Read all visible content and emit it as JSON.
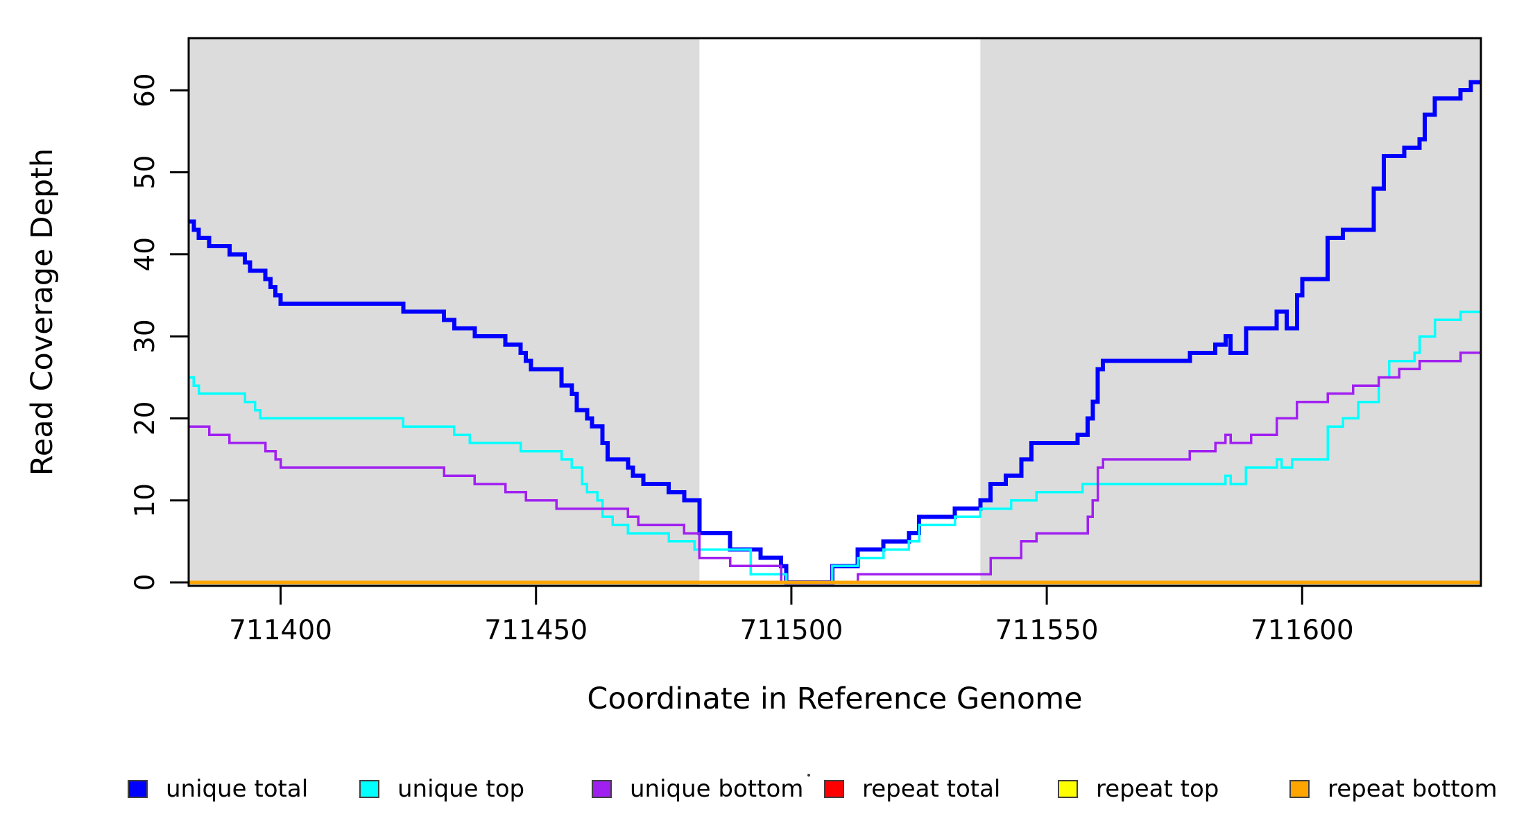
{
  "chart_data": {
    "type": "line",
    "subtype": "step-coverage",
    "title": "",
    "xlabel": "Coordinate in Reference Genome",
    "ylabel": "Read Coverage Depth",
    "xlim": [
      711382,
      711635
    ],
    "ylim": [
      0,
      66
    ],
    "grid": false,
    "legend_position": "bottom",
    "plot_background": "#ffffff",
    "shaded_band_color": "#dcdcdc",
    "shaded_regions": [
      {
        "x0": 711382,
        "x1": 711482
      },
      {
        "x0": 711537,
        "x1": 711635
      }
    ],
    "x_ticks": [
      {
        "value": 711400,
        "label": "711400"
      },
      {
        "value": 711450,
        "label": "711450"
      },
      {
        "value": 711500,
        "label": "711500"
      },
      {
        "value": 711550,
        "label": "711550"
      },
      {
        "value": 711600,
        "label": "711600"
      }
    ],
    "y_ticks": [
      {
        "value": 0,
        "label": "0"
      },
      {
        "value": 10,
        "label": "10"
      },
      {
        "value": 20,
        "label": "20"
      },
      {
        "value": 30,
        "label": "30"
      },
      {
        "value": 40,
        "label": "40"
      },
      {
        "value": 50,
        "label": "50"
      },
      {
        "value": 60,
        "label": "60"
      }
    ],
    "series": [
      {
        "name": "unique total",
        "color": "#0000ff",
        "stroke_width": 6,
        "steps": [
          [
            711382,
            44
          ],
          [
            711383,
            43
          ],
          [
            711384,
            42
          ],
          [
            711386,
            41
          ],
          [
            711390,
            40
          ],
          [
            711393,
            39
          ],
          [
            711394,
            38
          ],
          [
            711397,
            37
          ],
          [
            711398,
            36
          ],
          [
            711399,
            35
          ],
          [
            711400,
            34
          ],
          [
            711424,
            33
          ],
          [
            711432,
            32
          ],
          [
            711434,
            31
          ],
          [
            711438,
            30
          ],
          [
            711444,
            29
          ],
          [
            711447,
            28
          ],
          [
            711448,
            27
          ],
          [
            711449,
            26
          ],
          [
            711455,
            24
          ],
          [
            711457,
            23
          ],
          [
            711458,
            21
          ],
          [
            711460,
            20
          ],
          [
            711461,
            19
          ],
          [
            711463,
            17
          ],
          [
            711464,
            15
          ],
          [
            711468,
            14
          ],
          [
            711469,
            13
          ],
          [
            711471,
            12
          ],
          [
            711476,
            11
          ],
          [
            711479,
            10
          ],
          [
            711482,
            6
          ],
          [
            711488,
            4
          ],
          [
            711494,
            3
          ],
          [
            711498,
            2
          ],
          [
            711499,
            0
          ],
          [
            711508,
            2
          ],
          [
            711513,
            4
          ],
          [
            711518,
            5
          ],
          [
            711523,
            6
          ],
          [
            711525,
            8
          ],
          [
            711532,
            9
          ],
          [
            711537,
            10
          ],
          [
            711539,
            12
          ],
          [
            711542,
            13
          ],
          [
            711545,
            15
          ],
          [
            711547,
            17
          ],
          [
            711556,
            18
          ],
          [
            711558,
            20
          ],
          [
            711559,
            22
          ],
          [
            711560,
            26
          ],
          [
            711561,
            27
          ],
          [
            711578,
            28
          ],
          [
            711583,
            29
          ],
          [
            711585,
            30
          ],
          [
            711586,
            28
          ],
          [
            711589,
            31
          ],
          [
            711595,
            33
          ],
          [
            711597,
            31
          ],
          [
            711599,
            35
          ],
          [
            711600,
            37
          ],
          [
            711605,
            42
          ],
          [
            711608,
            43
          ],
          [
            711614,
            48
          ],
          [
            711616,
            52
          ],
          [
            711620,
            53
          ],
          [
            711623,
            54
          ],
          [
            711624,
            57
          ],
          [
            711626,
            59
          ],
          [
            711631,
            60
          ],
          [
            711633,
            61
          ]
        ]
      },
      {
        "name": "unique top",
        "color": "#00ffff",
        "stroke_width": 3.5,
        "steps": [
          [
            711382,
            25
          ],
          [
            711383,
            24
          ],
          [
            711384,
            23
          ],
          [
            711393,
            22
          ],
          [
            711395,
            21
          ],
          [
            711396,
            20
          ],
          [
            711424,
            19
          ],
          [
            711434,
            18
          ],
          [
            711437,
            17
          ],
          [
            711447,
            16
          ],
          [
            711455,
            15
          ],
          [
            711457,
            14
          ],
          [
            711459,
            12
          ],
          [
            711460,
            11
          ],
          [
            711462,
            10
          ],
          [
            711463,
            8
          ],
          [
            711465,
            7
          ],
          [
            711468,
            6
          ],
          [
            711476,
            5
          ],
          [
            711481,
            4
          ],
          [
            711492,
            1
          ],
          [
            711499,
            0
          ],
          [
            711508,
            2
          ],
          [
            711513,
            3
          ],
          [
            711518,
            4
          ],
          [
            711523,
            5
          ],
          [
            711525,
            7
          ],
          [
            711532,
            8
          ],
          [
            711537,
            9
          ],
          [
            711543,
            10
          ],
          [
            711548,
            11
          ],
          [
            711557,
            12
          ],
          [
            711585,
            13
          ],
          [
            711586,
            12
          ],
          [
            711589,
            14
          ],
          [
            711595,
            15
          ],
          [
            711596,
            14
          ],
          [
            711598,
            15
          ],
          [
            711605,
            19
          ],
          [
            711608,
            20
          ],
          [
            711611,
            22
          ],
          [
            711615,
            25
          ],
          [
            711617,
            27
          ],
          [
            711622,
            28
          ],
          [
            711623,
            30
          ],
          [
            711626,
            32
          ],
          [
            711631,
            33
          ]
        ]
      },
      {
        "name": "unique bottom",
        "color": "#a020f0",
        "stroke_width": 3.5,
        "steps": [
          [
            711382,
            19
          ],
          [
            711386,
            18
          ],
          [
            711390,
            17
          ],
          [
            711397,
            16
          ],
          [
            711399,
            15
          ],
          [
            711400,
            14
          ],
          [
            711432,
            13
          ],
          [
            711438,
            12
          ],
          [
            711444,
            11
          ],
          [
            711448,
            10
          ],
          [
            711454,
            9
          ],
          [
            711468,
            8
          ],
          [
            711470,
            7
          ],
          [
            711479,
            6
          ],
          [
            711482,
            3
          ],
          [
            711488,
            2
          ],
          [
            711498,
            0
          ],
          [
            711513,
            1
          ],
          [
            711539,
            3
          ],
          [
            711545,
            5
          ],
          [
            711548,
            6
          ],
          [
            711558,
            8
          ],
          [
            711559,
            10
          ],
          [
            711560,
            14
          ],
          [
            711561,
            15
          ],
          [
            711578,
            16
          ],
          [
            711583,
            17
          ],
          [
            711585,
            18
          ],
          [
            711586,
            17
          ],
          [
            711590,
            18
          ],
          [
            711595,
            20
          ],
          [
            711599,
            22
          ],
          [
            711605,
            23
          ],
          [
            711610,
            24
          ],
          [
            711615,
            25
          ],
          [
            711619,
            26
          ],
          [
            711623,
            27
          ],
          [
            711631,
            28
          ]
        ]
      },
      {
        "name": "repeat total",
        "color": "#ff0000",
        "stroke_width": 3.5,
        "steps": [
          [
            711382,
            0
          ]
        ]
      },
      {
        "name": "repeat top",
        "color": "#ffff00",
        "stroke_width": 3.5,
        "steps": [
          [
            711382,
            0
          ]
        ]
      },
      {
        "name": "repeat bottom",
        "color": "#ffa500",
        "stroke_width": 5,
        "steps": [
          [
            711382,
            0
          ]
        ]
      }
    ]
  },
  "legend": {
    "items": [
      {
        "label": "unique total",
        "color": "#0000ff"
      },
      {
        "label": "unique top",
        "color": "#00ffff"
      },
      {
        "label": "unique bottom",
        "color": "#a020f0"
      },
      {
        "label": "repeat total",
        "color": "#ff0000"
      },
      {
        "label": "repeat top",
        "color": "#ffff00"
      },
      {
        "label": "repeat bottom",
        "color": "#ffa500"
      }
    ]
  }
}
